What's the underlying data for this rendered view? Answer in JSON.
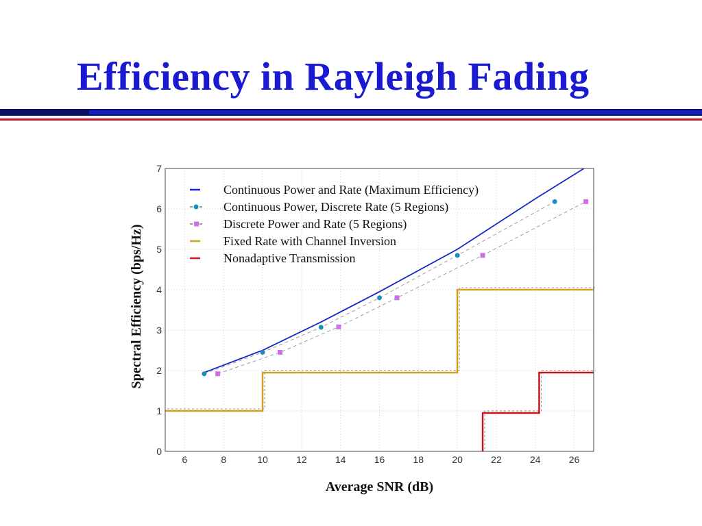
{
  "slide": {
    "title": "Efficiency in Rayleigh Fading"
  },
  "colors": {
    "title": "#1a1ad0",
    "rule_navy": "#0c1060",
    "rule_red": "#c01020",
    "max_eff": "#1428c8",
    "cont_power_discrete": "#1a8fbf",
    "discrete_power": "#d070e8",
    "channel_inversion": "#d4a020",
    "nonadaptive": "#c81420"
  },
  "chart_data": {
    "type": "line",
    "xlabel": "Average SNR (dB)",
    "ylabel": "Spectral Efficiency (bps/Hz)",
    "xlim": [
      5,
      27
    ],
    "ylim": [
      0,
      7
    ],
    "xticks": [
      6,
      8,
      10,
      12,
      14,
      16,
      18,
      20,
      22,
      24,
      26
    ],
    "yticks": [
      0,
      1,
      2,
      3,
      4,
      5,
      6,
      7
    ],
    "grid": true,
    "legend_position": "top-left",
    "series": [
      {
        "name": "Continuous Power and Rate (Maximum Efficiency)",
        "style": "solid",
        "x": [
          7,
          10,
          13,
          16,
          20,
          24,
          26.5
        ],
        "y": [
          1.95,
          2.5,
          3.2,
          3.95,
          5.0,
          6.25,
          7.0
        ]
      },
      {
        "name": "Continuous Power, Discrete Rate (5 Regions)",
        "style": "dashed-circle",
        "x": [
          7,
          10,
          13,
          16,
          20,
          25
        ],
        "y": [
          1.92,
          2.45,
          3.07,
          3.8,
          4.85,
          6.18
        ]
      },
      {
        "name": "Discrete Power and Rate (5 Regions)",
        "style": "dashed-square",
        "x": [
          7.7,
          10.9,
          13.9,
          16.9,
          21.3,
          26.6
        ],
        "y": [
          1.92,
          2.45,
          3.08,
          3.8,
          4.85,
          6.18
        ]
      },
      {
        "name": "Fixed Rate with Channel Inversion",
        "style": "step",
        "x": [
          5,
          10,
          10,
          20,
          20,
          27
        ],
        "y": [
          1.0,
          1.0,
          1.95,
          1.95,
          4.0,
          4.0
        ]
      },
      {
        "name": "Nonadaptive Transmission",
        "style": "step",
        "x": [
          21.3,
          21.3,
          24.2,
          24.2,
          27
        ],
        "y": [
          0,
          0.95,
          0.95,
          1.95,
          1.95
        ]
      }
    ]
  }
}
